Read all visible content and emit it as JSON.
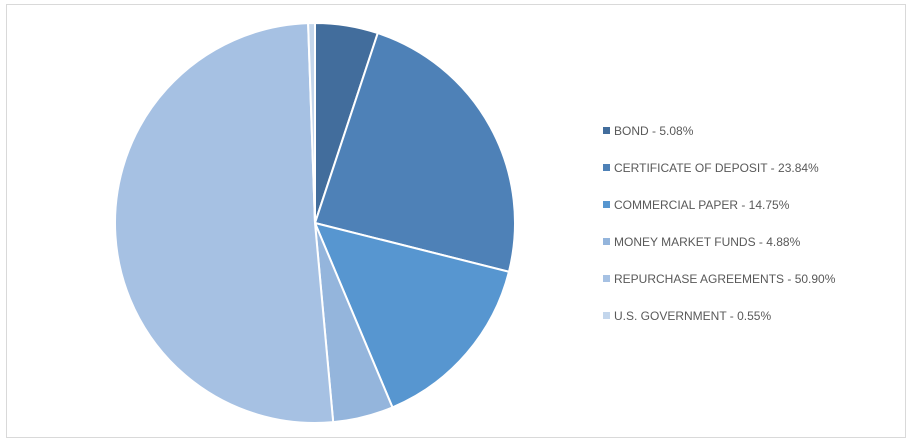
{
  "chart_data": {
    "type": "pie",
    "title": "",
    "slices": [
      {
        "label": "BOND",
        "value": 5.08,
        "legend": "BOND - 5.08%",
        "color": "#426d9c"
      },
      {
        "label": "CERTIFICATE OF DEPOSIT",
        "value": 23.84,
        "legend": "CERTIFICATE OF DEPOSIT - 23.84%",
        "color": "#4e81b7"
      },
      {
        "label": "COMMERCIAL PAPER",
        "value": 14.75,
        "legend": "COMMERCIAL PAPER - 14.75%",
        "color": "#5796d0"
      },
      {
        "label": "MONEY MARKET FUNDS",
        "value": 4.88,
        "legend": "MONEY MARKET FUNDS - 4.88%",
        "color": "#94b5dc"
      },
      {
        "label": "REPURCHASE AGREEMENTS",
        "value": 50.9,
        "legend": "REPURCHASE AGREEMENTS - 50.90%",
        "color": "#a6c1e3"
      },
      {
        "label": "U.S. GOVERNMENT",
        "value": 0.55,
        "legend": "U.S. GOVERNMENT - 0.55%",
        "color": "#c3d6ec"
      }
    ],
    "legend_position": "right"
  }
}
